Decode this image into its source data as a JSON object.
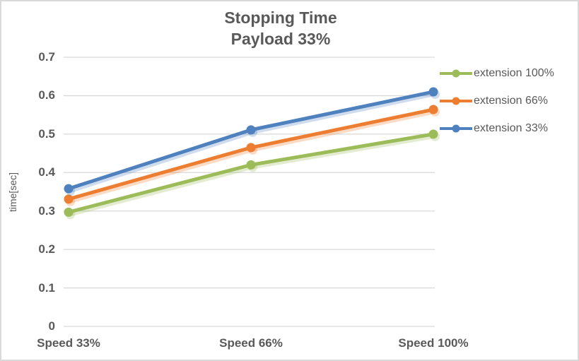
{
  "chart_data": {
    "type": "line",
    "title": "Stopping Time",
    "subtitle": "Payload 33%",
    "categories": [
      "Speed 33%",
      "Speed 66%",
      "Speed 100%"
    ],
    "series": [
      {
        "name": "extension 100%",
        "color": "#9CBB59",
        "values": [
          0.297,
          0.42,
          0.5
        ]
      },
      {
        "name": "extension 66%",
        "color": "#ED7D31",
        "values": [
          0.331,
          0.465,
          0.564
        ]
      },
      {
        "name": "extension 33%",
        "color": "#4E81BD",
        "values": [
          0.358,
          0.511,
          0.61
        ]
      }
    ],
    "xlabel": "",
    "ylabel": "time[sec]",
    "ylim": [
      0,
      0.7
    ],
    "ytick_step": 0.1,
    "ytick_labels": [
      "0",
      "0.1",
      "0.2",
      "0.3",
      "0.4",
      "0.5",
      "0.6",
      "0.7"
    ],
    "grid": true,
    "legend_position": "right",
    "marker": "circle"
  },
  "colors": {
    "text": "#595959",
    "gridline": "#D9D9D9",
    "chart_border": "#D9D9D9",
    "background": "#FFFFFF"
  }
}
